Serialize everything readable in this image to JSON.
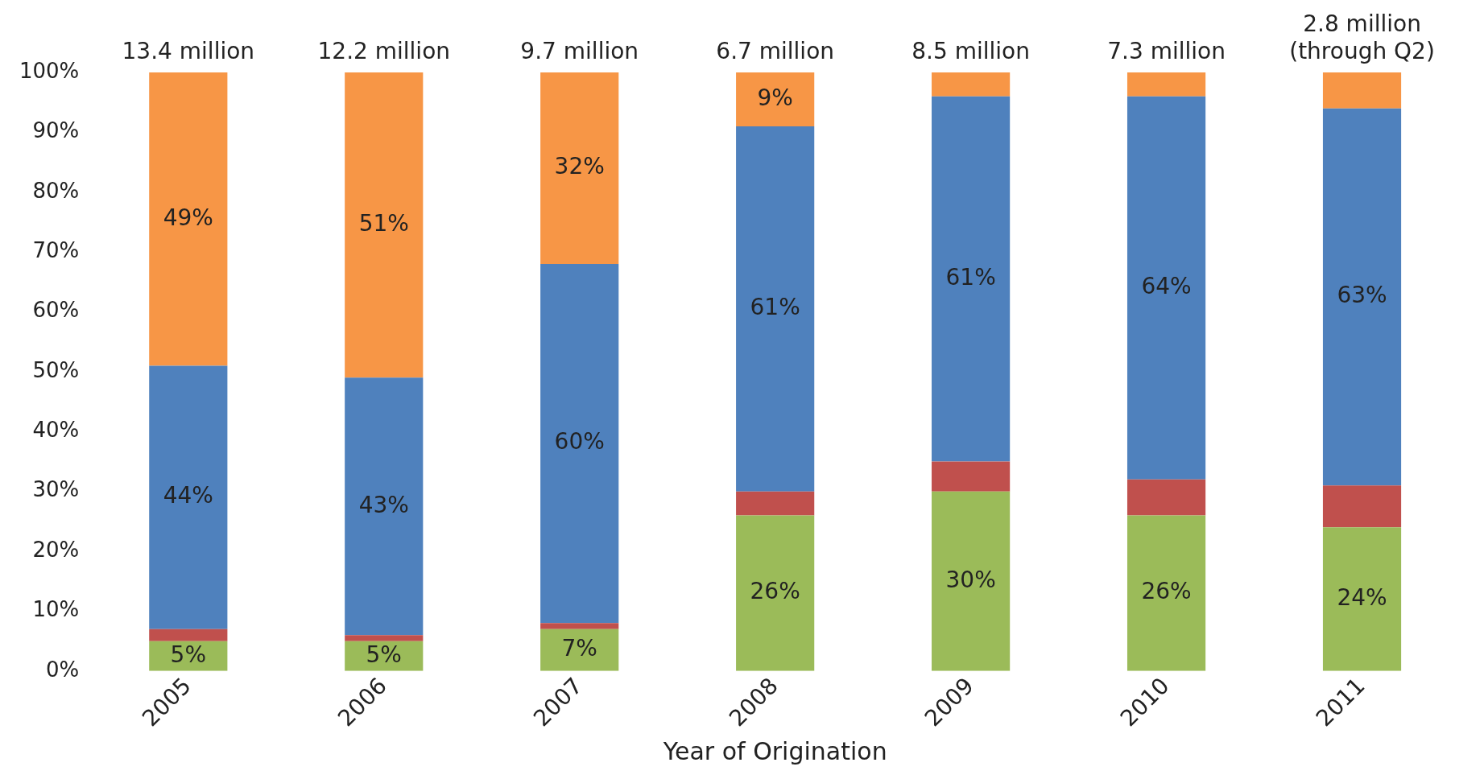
{
  "chart_data": {
    "type": "bar",
    "stacked": true,
    "xlabel": "Year of Origination",
    "categories": [
      "2005",
      "2006",
      "2007",
      "2008",
      "2009",
      "2010",
      "2011"
    ],
    "series": [
      {
        "color": "#9bbb59",
        "values": [
          5,
          5,
          7,
          26,
          30,
          26,
          24
        ],
        "value_labels": [
          "5%",
          "5%",
          "7%",
          "26%",
          "30%",
          "26%",
          "24%"
        ]
      },
      {
        "color": "#c0504d",
        "values": [
          2,
          1,
          1,
          4,
          5,
          6,
          7
        ],
        "value_labels": [
          null,
          null,
          null,
          null,
          null,
          null,
          null
        ]
      },
      {
        "color": "#4f81bd",
        "values": [
          44,
          43,
          60,
          61,
          61,
          64,
          63
        ],
        "value_labels": [
          "44%",
          "43%",
          "60%",
          "61%",
          "61%",
          "64%",
          "63%"
        ]
      },
      {
        "color": "#f79646",
        "values": [
          49,
          51,
          32,
          9,
          4,
          4,
          6
        ],
        "value_labels": [
          "49%",
          "51%",
          "32%",
          "9%",
          null,
          null,
          null
        ]
      }
    ],
    "ylim": [
      0,
      100
    ],
    "yticks": [
      {
        "value": 0,
        "label": "0%"
      },
      {
        "value": 10,
        "label": "10%"
      },
      {
        "value": 20,
        "label": "20%"
      },
      {
        "value": 30,
        "label": "30%"
      },
      {
        "value": 40,
        "label": "40%"
      },
      {
        "value": 50,
        "label": "50%"
      },
      {
        "value": 60,
        "label": "60%"
      },
      {
        "value": 70,
        "label": "70%"
      },
      {
        "value": 80,
        "label": "80%"
      },
      {
        "value": 90,
        "label": "90%"
      },
      {
        "value": 100,
        "label": "100%"
      }
    ],
    "annotations": [
      {
        "text": "13.4 million",
        "x": "2005",
        "y": 100
      },
      {
        "text": "12.2 million",
        "x": "2006",
        "y": 100
      },
      {
        "text": "9.7 million",
        "x": "2007",
        "y": 100
      },
      {
        "text": "6.7 million",
        "x": "2008",
        "y": 100
      },
      {
        "text": "8.5 million",
        "x": "2009",
        "y": 100
      },
      {
        "text": "7.3 million",
        "x": "2010",
        "y": 100
      },
      {
        "text": "2.8 million\n(through Q2)",
        "x": "2011",
        "y": 100
      }
    ],
    "grid": false,
    "legend": false
  }
}
